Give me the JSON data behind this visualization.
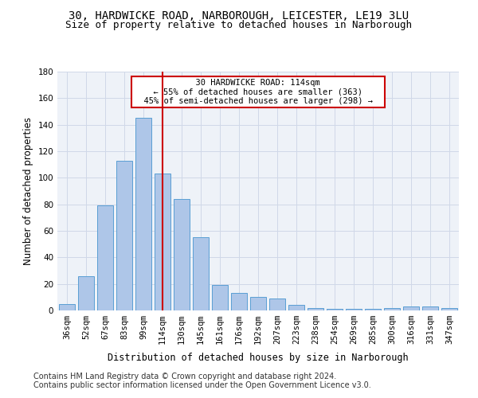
{
  "title1": "30, HARDWICKE ROAD, NARBOROUGH, LEICESTER, LE19 3LU",
  "title2": "Size of property relative to detached houses in Narborough",
  "xlabel": "Distribution of detached houses by size in Narborough",
  "ylabel": "Number of detached properties",
  "footer1": "Contains HM Land Registry data © Crown copyright and database right 2024.",
  "footer2": "Contains public sector information licensed under the Open Government Licence v3.0.",
  "annotation_line1": "30 HARDWICKE ROAD: 114sqm",
  "annotation_line2": "← 55% of detached houses are smaller (363)",
  "annotation_line3": "45% of semi-detached houses are larger (298) →",
  "property_size": 114,
  "categories": [
    "36sqm",
    "52sqm",
    "67sqm",
    "83sqm",
    "99sqm",
    "114sqm",
    "130sqm",
    "145sqm",
    "161sqm",
    "176sqm",
    "192sqm",
    "207sqm",
    "223sqm",
    "238sqm",
    "254sqm",
    "269sqm",
    "285sqm",
    "300sqm",
    "316sqm",
    "331sqm",
    "347sqm"
  ],
  "values": [
    5,
    26,
    79,
    113,
    145,
    103,
    84,
    55,
    19,
    13,
    10,
    9,
    4,
    2,
    1,
    1,
    1,
    2,
    3,
    3,
    2
  ],
  "bar_color": "#aec6e8",
  "bar_edge_color": "#5a9fd4",
  "highlight_bar_index": 5,
  "vline_color": "#cc0000",
  "vline_x": 5,
  "ylim": [
    0,
    180
  ],
  "yticks": [
    0,
    20,
    40,
    60,
    80,
    100,
    120,
    140,
    160,
    180
  ],
  "grid_color": "#d0d8e8",
  "bg_color": "#eef2f8",
  "annotation_box_color": "#cc0000",
  "title_fontsize": 10,
  "subtitle_fontsize": 9,
  "axis_label_fontsize": 8.5,
  "tick_fontsize": 7.5,
  "footer_fontsize": 7
}
